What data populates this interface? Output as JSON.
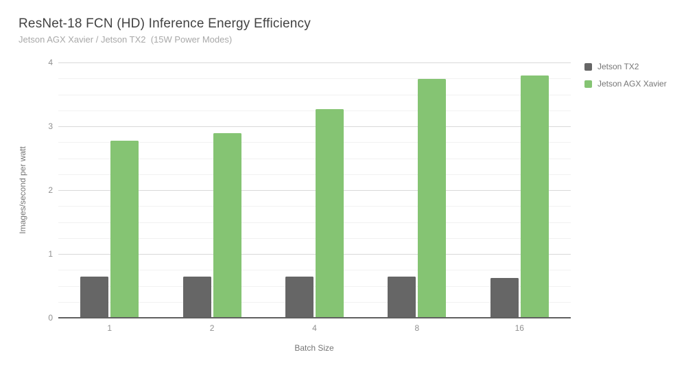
{
  "chart_data": {
    "type": "bar",
    "title": "ResNet-18 FCN (HD) Inference Energy Efficiency",
    "subtitle": "Jetson AGX Xavier / Jetson TX2  (15W Power Modes)",
    "xlabel": "Batch Size",
    "ylabel": "Images/second per watt",
    "categories": [
      "1",
      "2",
      "4",
      "8",
      "16"
    ],
    "series": [
      {
        "name": "Jetson TX2",
        "color": "#666666",
        "values": [
          0.65,
          0.65,
          0.64,
          0.64,
          0.62
        ]
      },
      {
        "name": "Jetson AGX Xavier",
        "color": "#85c473",
        "values": [
          2.77,
          2.89,
          3.27,
          3.74,
          3.8
        ]
      }
    ],
    "ylim": [
      0,
      4
    ],
    "yticks": [
      0,
      1,
      2,
      3,
      4
    ],
    "minor_tick_step": 0.25,
    "grid": "on",
    "legend_position": "right-top",
    "colors": {
      "major_gridline": "#d9d9d9",
      "minor_gridline": "#f1f1f1",
      "axis_line": "#5f5f5f",
      "title_text": "#424242",
      "subtitle_text": "#a8a8a8",
      "tick_text": "#8f8f8f",
      "axis_title_text": "#757575",
      "legend_text": "#757575"
    }
  }
}
